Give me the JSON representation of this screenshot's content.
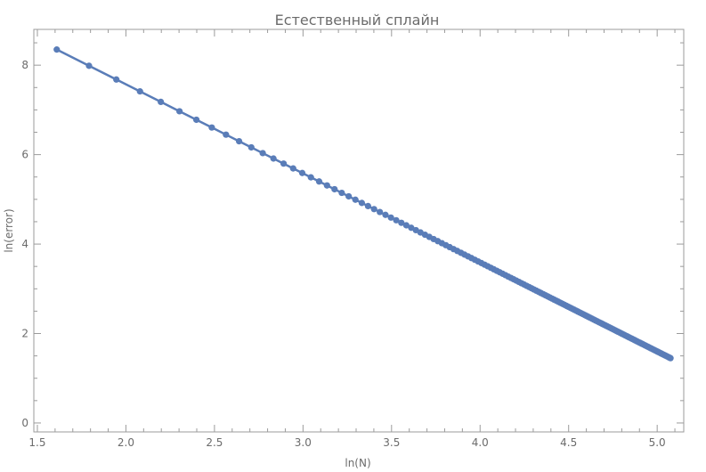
{
  "chart_data": {
    "type": "line",
    "title": "Естественный сплайн",
    "xlabel": "ln(N)",
    "ylabel": "ln(error)",
    "xlim": [
      1.48,
      5.15
    ],
    "ylim": [
      -0.2,
      8.8
    ],
    "x_ticks": [
      "1.5",
      "2.0",
      "2.5",
      "3.0",
      "3.5",
      "4.0",
      "4.5",
      "5.0"
    ],
    "y_ticks": [
      "0",
      "2",
      "4",
      "6",
      "8"
    ],
    "grid": false,
    "series": [
      {
        "markers": true,
        "point_spacing": "ln(N) for N = 5 ... 160",
        "x_start": 1.609,
        "x_end": 5.075,
        "y_start": 8.35,
        "y_end": 1.45
      }
    ],
    "colors": {
      "series": "#5a7db8",
      "frame": "#9b9b9b",
      "text": "#6b6b6b"
    }
  }
}
